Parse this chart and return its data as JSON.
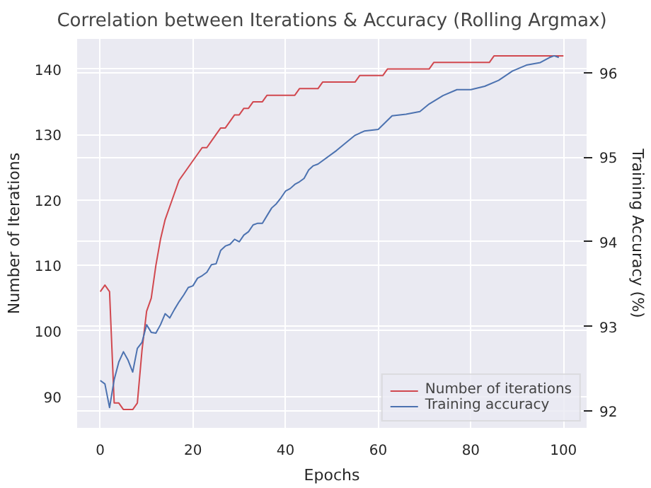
{
  "chart_data": {
    "type": "line",
    "title": "Correlation between Iterations & Accuracy (Rolling Argmax)",
    "xlabel": "Epochs",
    "ylabel": "Number of Iterations",
    "y2label": "Training Accuracy (%)",
    "xlim": [
      -5,
      105
    ],
    "xticks": [
      0,
      20,
      40,
      60,
      80,
      100
    ],
    "ylim": [
      85.2,
      144.6
    ],
    "yticks": [
      90,
      100,
      110,
      120,
      130,
      140
    ],
    "y2lim": [
      91.8,
      96.4
    ],
    "y2ticks": [
      92,
      93,
      94,
      95,
      96
    ],
    "grid": true,
    "legend": "bottom right",
    "marker": "none",
    "line_style": "solid",
    "series": [
      {
        "name": "Number of iterations",
        "color": "#d1484f",
        "x": [
          0,
          1,
          2,
          3,
          4,
          5,
          6,
          7,
          8,
          9,
          10,
          11,
          12,
          13,
          14,
          15,
          16,
          17,
          18,
          19,
          20,
          21,
          22,
          23,
          24,
          25,
          26,
          27,
          28,
          29,
          30,
          31,
          32,
          33,
          34,
          35,
          36,
          42,
          43,
          47,
          48,
          55,
          56,
          61,
          62,
          71,
          72,
          84,
          85,
          100
        ],
        "values": [
          106,
          107,
          106,
          89,
          89,
          88,
          88,
          88,
          89,
          97,
          103,
          105,
          110,
          114,
          117,
          119,
          121,
          123,
          124,
          125,
          126,
          127,
          128,
          128,
          129,
          130,
          131,
          131,
          132,
          133,
          133,
          134,
          134,
          135,
          135,
          135,
          136,
          136,
          137,
          137,
          138,
          138,
          139,
          139,
          140,
          140,
          141,
          141,
          142,
          142
        ]
      },
      {
        "name": "Training accuracy",
        "color": "#4c72b0",
        "axis": "y2",
        "x": [
          0,
          1,
          2,
          3,
          4,
          5,
          6,
          7,
          8,
          9,
          10,
          11,
          12,
          13,
          14,
          15,
          16,
          17,
          18,
          19,
          20,
          21,
          22,
          23,
          24,
          25,
          26,
          27,
          28,
          29,
          30,
          31,
          32,
          33,
          34,
          35,
          36,
          37,
          38,
          39,
          40,
          41,
          42,
          43,
          44,
          45,
          46,
          47,
          51,
          53,
          55,
          57,
          60,
          63,
          66,
          69,
          71,
          74,
          77,
          80,
          83,
          86,
          89,
          92,
          95,
          97,
          98,
          99
        ],
        "values": [
          92.36,
          92.32,
          92.04,
          92.37,
          92.58,
          92.7,
          92.6,
          92.46,
          92.74,
          92.81,
          93.02,
          92.93,
          92.92,
          93.02,
          93.15,
          93.1,
          93.2,
          93.29,
          93.37,
          93.46,
          93.48,
          93.57,
          93.6,
          93.64,
          93.73,
          93.74,
          93.9,
          93.95,
          93.97,
          94.03,
          94.0,
          94.08,
          94.12,
          94.2,
          94.22,
          94.22,
          94.31,
          94.4,
          94.45,
          94.52,
          94.6,
          94.63,
          94.68,
          94.71,
          94.75,
          94.85,
          94.9,
          94.92,
          95.08,
          95.17,
          95.26,
          95.31,
          95.33,
          95.49,
          95.51,
          95.54,
          95.63,
          95.73,
          95.8,
          95.8,
          95.84,
          95.91,
          96.02,
          96.09,
          96.12,
          96.18,
          96.2,
          96.18
        ]
      }
    ]
  }
}
